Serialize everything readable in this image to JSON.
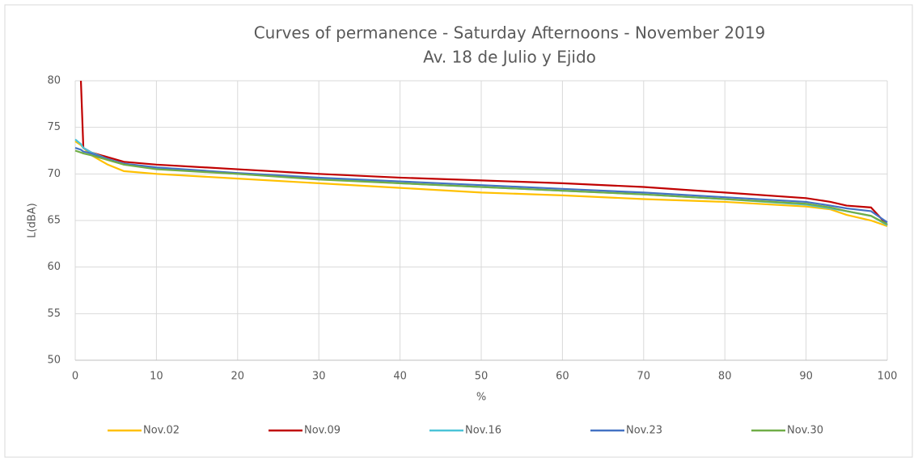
{
  "chart_data": {
    "type": "line",
    "title": "Curves of permanence - Saturday Afternoons - November 2019",
    "subtitle": "Av. 18 de Julio y Ejido",
    "xlabel": "%",
    "ylabel": "L(dBA)",
    "x": [
      0,
      0.7,
      1,
      2,
      4,
      6,
      10,
      20,
      30,
      40,
      50,
      60,
      70,
      80,
      90,
      93,
      95,
      98,
      100
    ],
    "series": [
      {
        "name": "Nov.02",
        "color": "#ffc000",
        "values": [
          73.5,
          73.1,
          72.8,
          72,
          71,
          70.3,
          70,
          69.5,
          69,
          68.5,
          68,
          67.7,
          67.3,
          67,
          66.5,
          66.2,
          65.6,
          65,
          64.4
        ]
      },
      {
        "name": "Nov.09",
        "color": "#c00000",
        "values": [
          null,
          80,
          72.8,
          72.3,
          71.8,
          71.3,
          71,
          70.5,
          70,
          69.6,
          69.3,
          69,
          68.6,
          68,
          67.4,
          67,
          66.6,
          66.4,
          64.5
        ]
      },
      {
        "name": "Nov.16",
        "color": "#4bc4d8",
        "values": [
          73.7,
          73.2,
          72.8,
          72.3,
          71.6,
          71,
          70.6,
          70,
          69.5,
          69,
          68.6,
          68.2,
          67.8,
          67.3,
          66.7,
          66.3,
          66,
          65.5,
          64.5
        ]
      },
      {
        "name": "Nov.23",
        "color": "#4472c4",
        "values": [
          72.8,
          72.6,
          72.4,
          72.2,
          71.6,
          71.1,
          70.7,
          70.1,
          69.6,
          69.2,
          68.8,
          68.4,
          68,
          67.5,
          67,
          66.6,
          66.3,
          66,
          64.8
        ]
      },
      {
        "name": "Nov.30",
        "color": "#70ad47",
        "values": [
          72.5,
          72.3,
          72.2,
          72,
          71.5,
          71,
          70.5,
          70,
          69.4,
          69,
          68.6,
          68.2,
          67.8,
          67.3,
          66.8,
          66.4,
          66,
          65.5,
          64.6
        ]
      }
    ],
    "xlim": [
      0,
      100
    ],
    "xticks": [
      0,
      10,
      20,
      30,
      40,
      50,
      60,
      70,
      80,
      90,
      100
    ],
    "ylim": [
      50,
      80
    ],
    "yticks": [
      50,
      55,
      60,
      65,
      70,
      75,
      80
    ],
    "grid": true,
    "legend": "bottom"
  }
}
